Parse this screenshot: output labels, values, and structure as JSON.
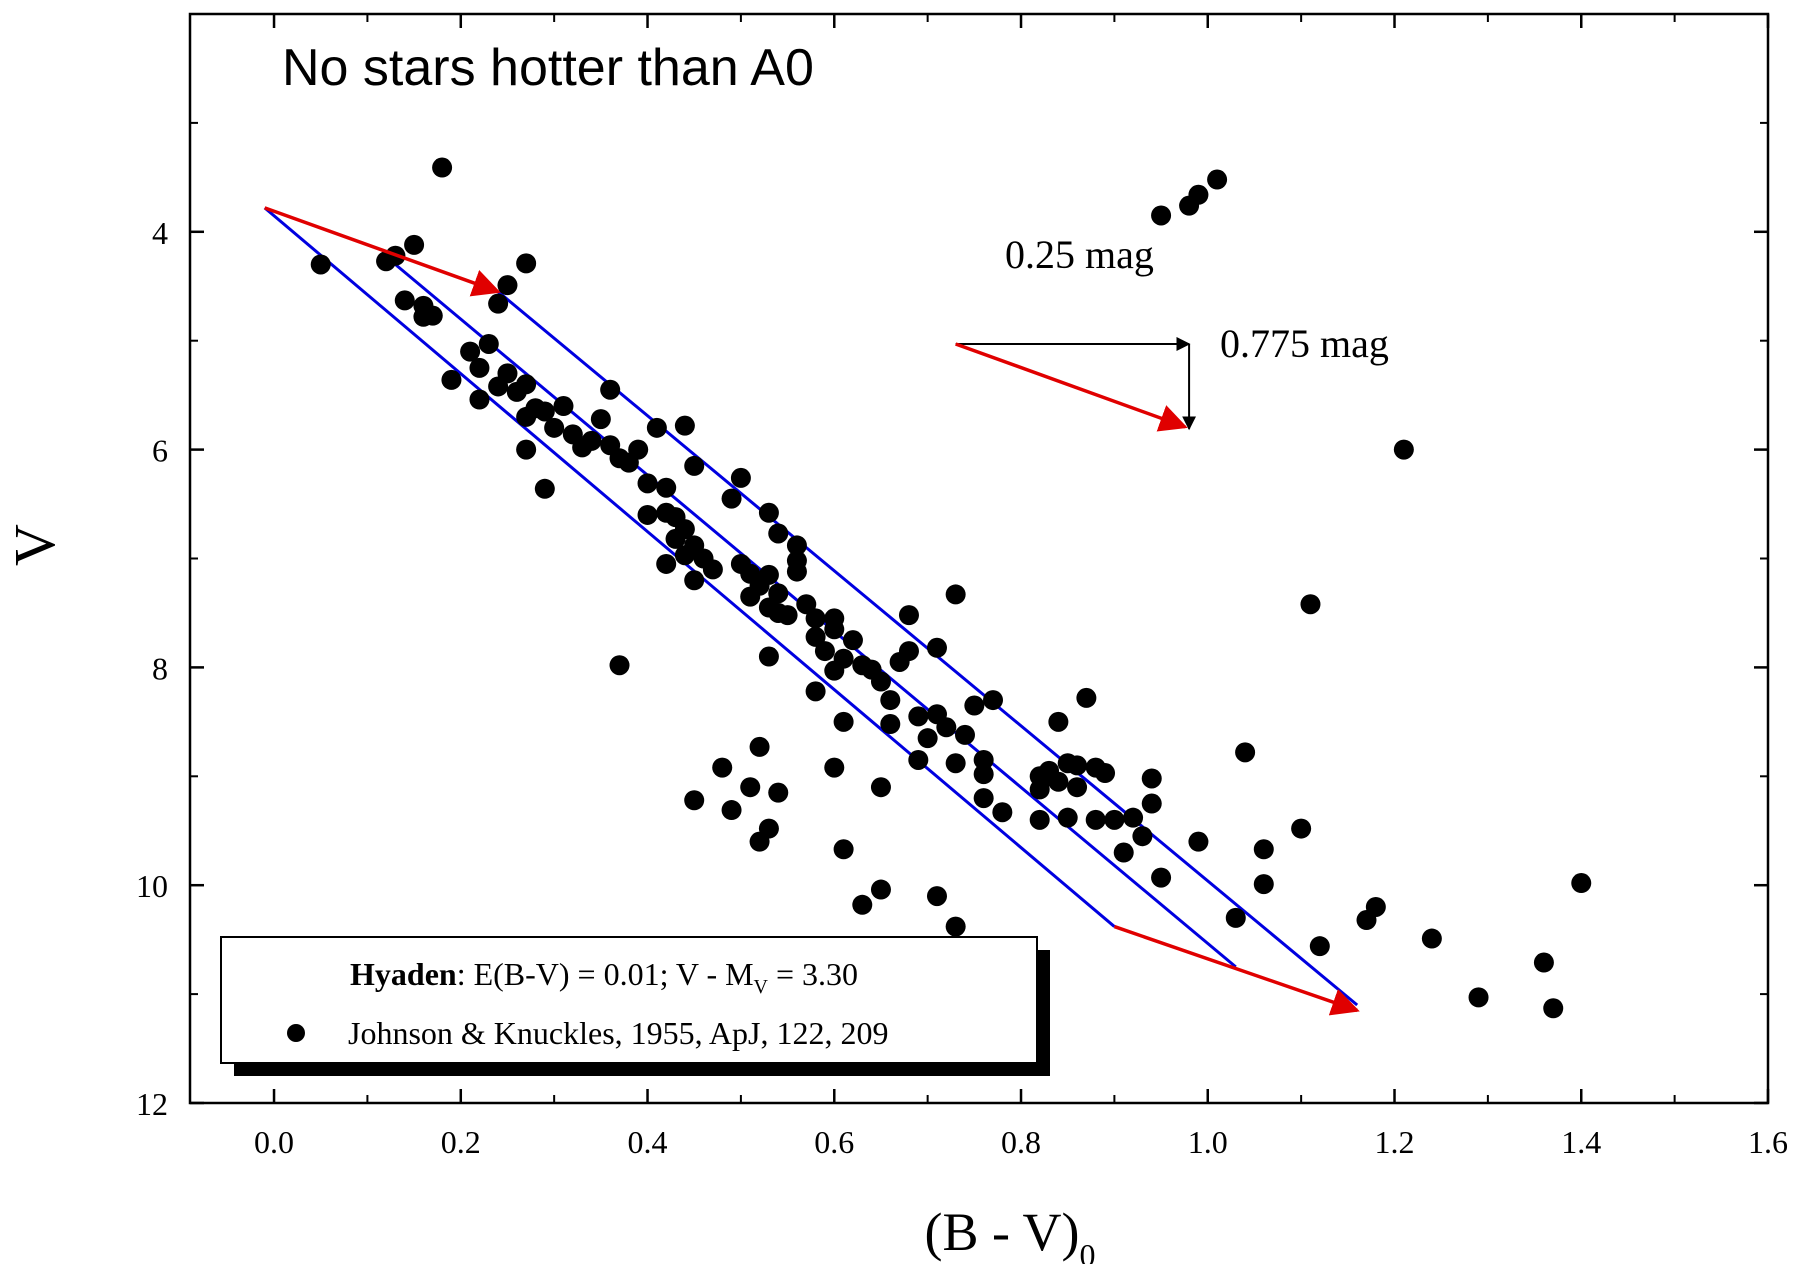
{
  "chart_data": {
    "type": "scatter",
    "title": "No stars hotter than A0",
    "xlabel": "(B - V)",
    "xlabel_sub": "0",
    "ylabel": "V",
    "xlim": [
      -0.09,
      1.6
    ],
    "ylim": [
      12,
      2.0
    ],
    "y_inverted": true,
    "x_ticks": [
      "0.0",
      "0.2",
      "0.4",
      "0.6",
      "0.8",
      "1.0",
      "1.2",
      "1.4",
      "1.6"
    ],
    "x_tick_values": [
      0.0,
      0.2,
      0.4,
      0.6,
      0.8,
      1.0,
      1.2,
      1.4,
      1.6
    ],
    "y_ticks": [
      "4",
      "6",
      "8",
      "10",
      "12"
    ],
    "y_tick_values": [
      4,
      6,
      8,
      10,
      12
    ],
    "legend": {
      "position": "bottom-left",
      "title_bold": "Hyaden",
      "title_rest": ": E(B-V) = 0.01; V - M",
      "title_sub": "V",
      "title_end": " = 3.30",
      "series_label": "Johnson & Knuckles, 1955, ApJ, 122, 209"
    },
    "annotations": {
      "horizontal_shift": "0.25 mag",
      "vertical_shift": "0.775 mag",
      "reddening_vector_start": [
        0.73,
        5.03
      ],
      "reddening_vector_end": [
        0.98,
        5.81
      ],
      "vector_color": "#e00000",
      "band_color": "#0000e0"
    },
    "bands": [
      {
        "name": "lower",
        "x": [
          -0.01,
          0.9
        ],
        "y": [
          3.78,
          10.38
        ]
      },
      {
        "name": "middle",
        "x": [
          0.13,
          1.03
        ],
        "y": [
          4.3,
          10.75
        ]
      },
      {
        "name": "upper",
        "x": [
          0.24,
          1.16
        ],
        "y": [
          4.55,
          11.1
        ]
      }
    ],
    "band_ends": [
      {
        "x": [
          -0.01,
          0.24
        ],
        "y": [
          3.78,
          4.55
        ]
      },
      {
        "x": [
          0.9,
          1.16
        ],
        "y": [
          10.38,
          11.15
        ]
      }
    ],
    "series": [
      {
        "name": "Johnson & Knuckles, 1955, ApJ, 122, 209",
        "color": "#000000",
        "points": [
          [
            0.05,
            4.3
          ],
          [
            0.12,
            4.27
          ],
          [
            0.15,
            4.12
          ],
          [
            0.13,
            4.22
          ],
          [
            0.14,
            4.63
          ],
          [
            0.16,
            4.68
          ],
          [
            0.16,
            4.78
          ],
          [
            0.17,
            4.77
          ],
          [
            0.18,
            3.41
          ],
          [
            0.19,
            5.36
          ],
          [
            0.21,
            5.1
          ],
          [
            0.22,
            5.25
          ],
          [
            0.23,
            5.03
          ],
          [
            0.22,
            5.54
          ],
          [
            0.24,
            4.66
          ],
          [
            0.25,
            4.49
          ],
          [
            0.27,
            4.29
          ],
          [
            0.24,
            5.42
          ],
          [
            0.25,
            5.3
          ],
          [
            0.26,
            5.47
          ],
          [
            0.27,
            5.4
          ],
          [
            0.27,
            5.7
          ],
          [
            0.28,
            5.62
          ],
          [
            0.27,
            6.0
          ],
          [
            0.29,
            5.65
          ],
          [
            0.3,
            5.8
          ],
          [
            0.29,
            6.36
          ],
          [
            0.31,
            5.6
          ],
          [
            0.32,
            5.86
          ],
          [
            0.33,
            5.98
          ],
          [
            0.34,
            5.92
          ],
          [
            0.35,
            5.72
          ],
          [
            0.36,
            5.45
          ],
          [
            0.36,
            5.96
          ],
          [
            0.37,
            6.08
          ],
          [
            0.38,
            6.12
          ],
          [
            0.39,
            6.0
          ],
          [
            0.4,
            6.31
          ],
          [
            0.41,
            5.8
          ],
          [
            0.42,
            6.35
          ],
          [
            0.4,
            6.6
          ],
          [
            0.42,
            6.58
          ],
          [
            0.43,
            6.62
          ],
          [
            0.43,
            6.82
          ],
          [
            0.44,
            6.73
          ],
          [
            0.45,
            6.88
          ],
          [
            0.46,
            7.0
          ],
          [
            0.44,
            5.78
          ],
          [
            0.45,
            6.15
          ],
          [
            0.44,
            6.97
          ],
          [
            0.45,
            7.2
          ],
          [
            0.42,
            7.05
          ],
          [
            0.47,
            7.1
          ],
          [
            0.49,
            6.45
          ],
          [
            0.5,
            6.26
          ],
          [
            0.5,
            7.05
          ],
          [
            0.51,
            7.14
          ],
          [
            0.51,
            7.35
          ],
          [
            0.52,
            7.25
          ],
          [
            0.53,
            7.15
          ],
          [
            0.53,
            7.45
          ],
          [
            0.54,
            7.32
          ],
          [
            0.54,
            7.5
          ],
          [
            0.55,
            7.52
          ],
          [
            0.53,
            6.58
          ],
          [
            0.54,
            6.77
          ],
          [
            0.56,
            6.88
          ],
          [
            0.56,
            7.02
          ],
          [
            0.56,
            7.12
          ],
          [
            0.57,
            7.42
          ],
          [
            0.58,
            7.55
          ],
          [
            0.58,
            7.72
          ],
          [
            0.59,
            7.85
          ],
          [
            0.6,
            7.65
          ],
          [
            0.6,
            7.55
          ],
          [
            0.61,
            7.92
          ],
          [
            0.62,
            7.75
          ],
          [
            0.63,
            7.98
          ],
          [
            0.64,
            8.02
          ],
          [
            0.65,
            8.13
          ],
          [
            0.66,
            8.3
          ],
          [
            0.67,
            7.95
          ],
          [
            0.68,
            7.85
          ],
          [
            0.68,
            7.52
          ],
          [
            0.6,
            8.03
          ],
          [
            0.58,
            8.22
          ],
          [
            0.61,
            8.5
          ],
          [
            0.66,
            8.52
          ],
          [
            0.69,
            8.45
          ],
          [
            0.71,
            8.43
          ],
          [
            0.7,
            8.65
          ],
          [
            0.72,
            8.55
          ],
          [
            0.74,
            8.62
          ],
          [
            0.75,
            8.35
          ],
          [
            0.76,
            8.85
          ],
          [
            0.76,
            8.98
          ],
          [
            0.77,
            8.3
          ],
          [
            0.73,
            8.88
          ],
          [
            0.71,
            7.82
          ],
          [
            0.73,
            7.33
          ],
          [
            0.69,
            8.85
          ],
          [
            0.78,
            9.33
          ],
          [
            0.82,
            9.0
          ],
          [
            0.83,
            9.0
          ],
          [
            0.83,
            8.95
          ],
          [
            0.84,
            9.05
          ],
          [
            0.85,
            8.88
          ],
          [
            0.86,
            8.9
          ],
          [
            0.86,
            9.1
          ],
          [
            0.87,
            8.28
          ],
          [
            0.84,
            8.5
          ],
          [
            0.85,
            9.38
          ],
          [
            0.82,
            9.4
          ],
          [
            0.88,
            8.92
          ],
          [
            0.89,
            8.97
          ],
          [
            0.88,
            9.4
          ],
          [
            0.9,
            9.4
          ],
          [
            0.91,
            9.7
          ],
          [
            0.92,
            9.38
          ],
          [
            0.93,
            9.55
          ],
          [
            0.94,
            9.02
          ],
          [
            0.94,
            9.25
          ],
          [
            0.95,
            9.93
          ],
          [
            0.99,
            9.6
          ],
          [
            0.76,
            9.2
          ],
          [
            0.82,
            9.12
          ],
          [
            0.53,
            7.9
          ],
          [
            0.37,
            7.98
          ],
          [
            0.45,
            9.22
          ],
          [
            0.48,
            8.92
          ],
          [
            0.49,
            9.31
          ],
          [
            0.51,
            9.1
          ],
          [
            0.52,
            8.73
          ],
          [
            0.52,
            9.6
          ],
          [
            0.53,
            9.48
          ],
          [
            0.54,
            9.15
          ],
          [
            0.6,
            8.92
          ],
          [
            0.61,
            9.67
          ],
          [
            0.65,
            9.1
          ],
          [
            0.63,
            10.18
          ],
          [
            0.65,
            10.04
          ],
          [
            0.71,
            10.1
          ],
          [
            0.73,
            10.38
          ],
          [
            0.95,
            3.85
          ],
          [
            0.98,
            3.76
          ],
          [
            0.99,
            3.66
          ],
          [
            1.01,
            3.52
          ],
          [
            1.21,
            6.0
          ],
          [
            1.11,
            7.42
          ],
          [
            1.04,
            8.78
          ],
          [
            1.1,
            9.48
          ],
          [
            1.06,
            9.67
          ],
          [
            1.06,
            9.99
          ],
          [
            1.03,
            10.3
          ],
          [
            1.12,
            10.56
          ],
          [
            1.17,
            10.32
          ],
          [
            1.18,
            10.2
          ],
          [
            1.24,
            10.49
          ],
          [
            1.29,
            11.03
          ],
          [
            1.36,
            10.71
          ],
          [
            1.37,
            11.13
          ],
          [
            1.4,
            9.98
          ]
        ]
      }
    ]
  }
}
